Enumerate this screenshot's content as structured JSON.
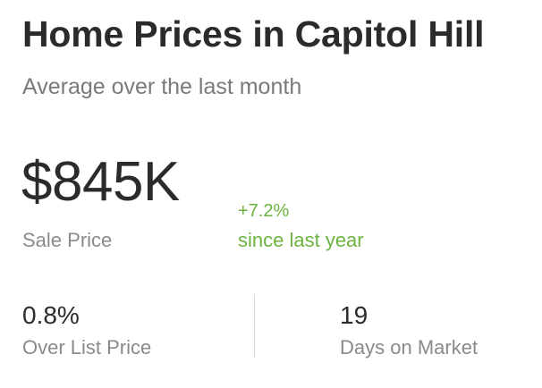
{
  "header": {
    "title": "Home Prices in Capitol Hill",
    "subtitle": "Average over the last month"
  },
  "sale_price": {
    "value": "$845K",
    "label": "Sale Price"
  },
  "change": {
    "value": "+7.2%",
    "label": "since last year",
    "color": "#6cb33f"
  },
  "stats": {
    "over_list": {
      "value": "0.8%",
      "label": "Over List Price"
    },
    "days_on_market": {
      "value": "19",
      "label": "Days on Market"
    }
  }
}
